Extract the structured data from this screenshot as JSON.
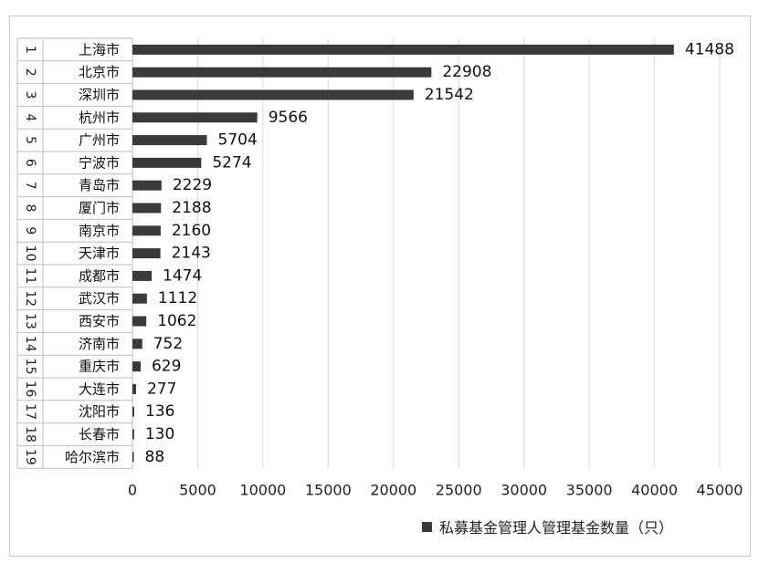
{
  "chart_data": {
    "type": "bar",
    "orientation": "horizontal",
    "ranks": [
      "1",
      "2",
      "3",
      "4",
      "5",
      "6",
      "7",
      "8",
      "9",
      "10",
      "11",
      "12",
      "13",
      "14",
      "15",
      "16",
      "17",
      "18",
      "19"
    ],
    "categories": [
      "上海市",
      "北京市",
      "深圳市",
      "杭州市",
      "广州市",
      "宁波市",
      "青岛市",
      "厦门市",
      "南京市",
      "天津市",
      "成都市",
      "武汉市",
      "西安市",
      "济南市",
      "重庆市",
      "大连市",
      "沈阳市",
      "长春市",
      "哈尔滨市"
    ],
    "series": [
      {
        "name": "私募基金管理人管理基金数量（只）",
        "values": [
          41488,
          22908,
          21542,
          9566,
          5704,
          5274,
          2229,
          2188,
          2160,
          2143,
          1474,
          1112,
          1062,
          752,
          629,
          277,
          136,
          130,
          88
        ]
      }
    ],
    "xlim": [
      0,
      45000
    ],
    "xticks": [
      "0",
      "5000",
      "10000",
      "15000",
      "20000",
      "25000",
      "30000",
      "35000",
      "40000",
      "45000"
    ],
    "grid": "vertical",
    "legend_position": "bottom",
    "bar_color": "#3a3a3a"
  }
}
